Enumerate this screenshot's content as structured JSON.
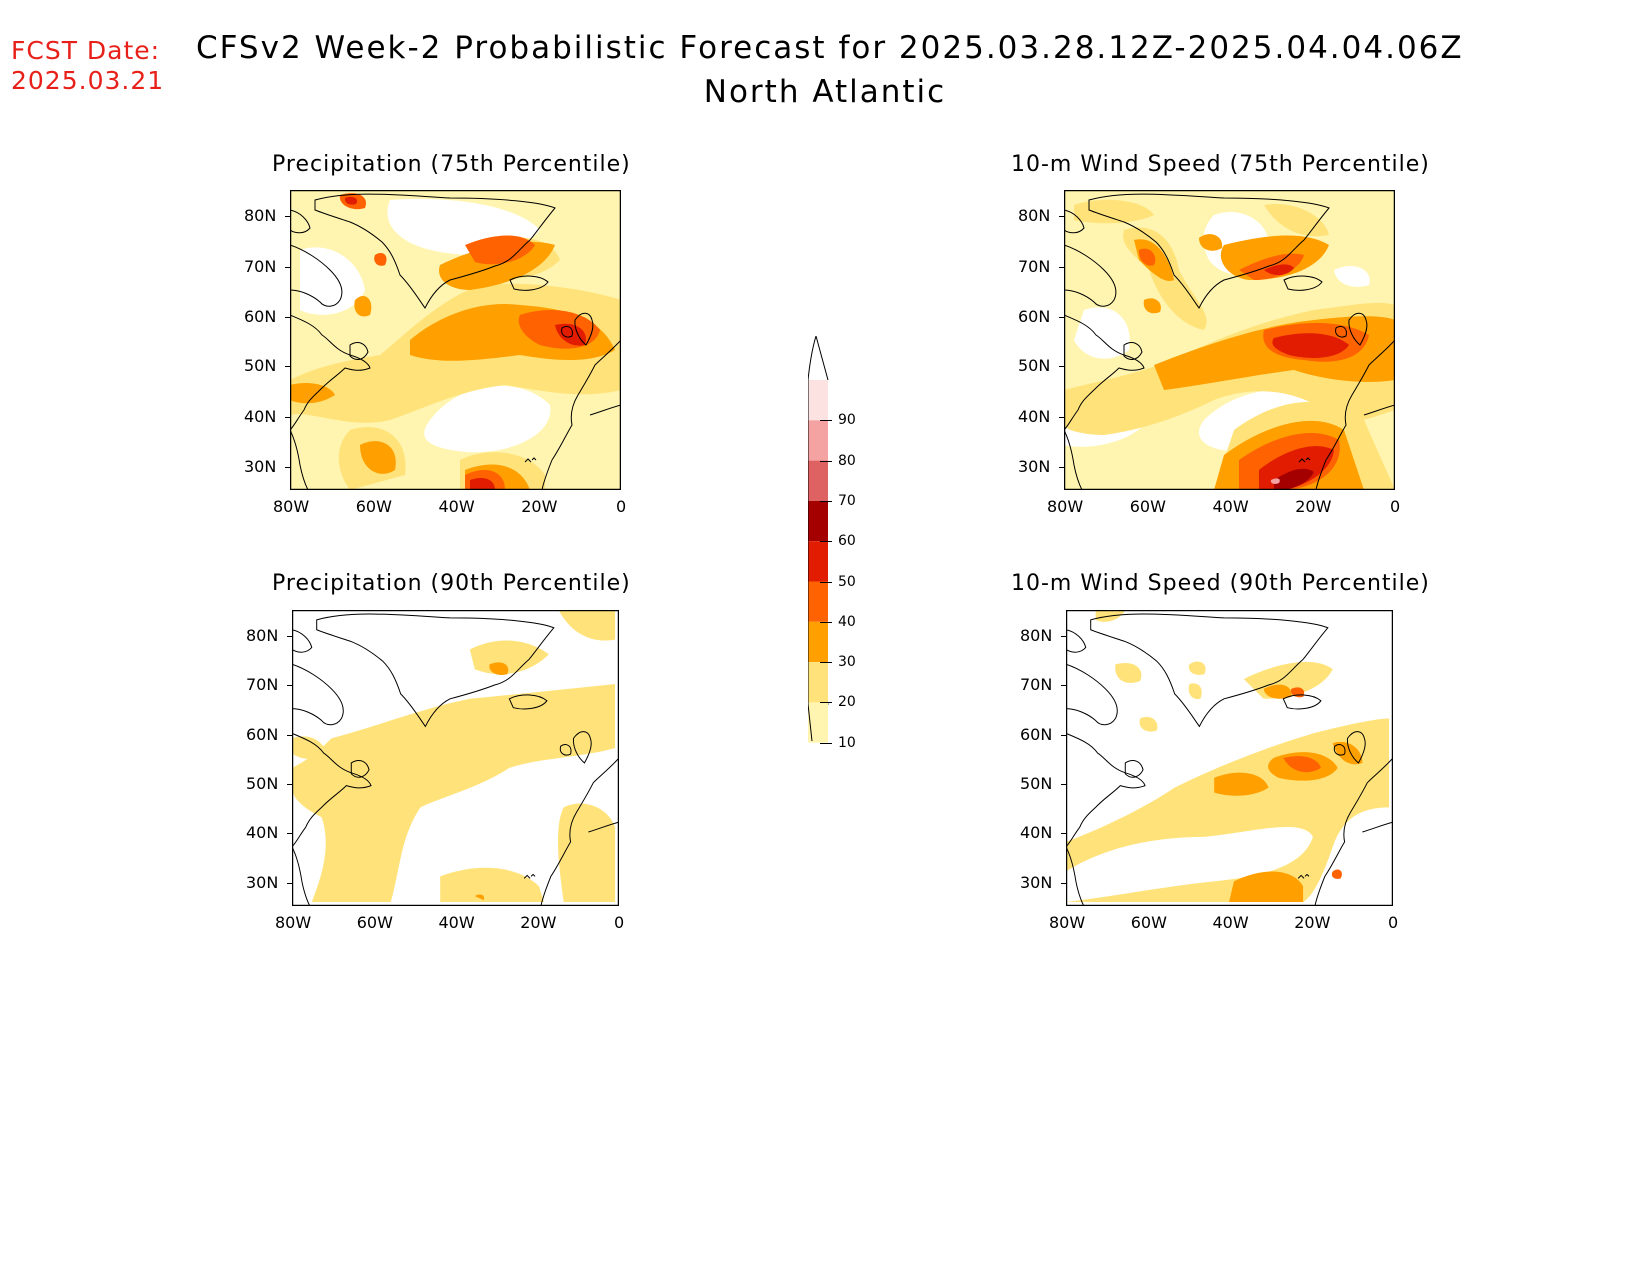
{
  "header": {
    "fcst_label": "FCST Date:",
    "fcst_date": "2025.03.21",
    "title": "CFSv2 Week-2 Probabilistic Forecast for 2025.03.28.12Z-2025.04.04.06Z",
    "subtitle": "North Atlantic"
  },
  "panels": [
    {
      "title": "Precipitation (75th Percentile)"
    },
    {
      "title": "10-m Wind Speed (75th Percentile)"
    },
    {
      "title": "Precipitation (90th Percentile)"
    },
    {
      "title": "10-m Wind Speed (90th Percentile)"
    }
  ],
  "axes": {
    "lat_labels": [
      "80N",
      "70N",
      "60N",
      "50N",
      "40N",
      "30N"
    ],
    "lon_labels": [
      "80W",
      "60W",
      "40W",
      "20W",
      "0"
    ]
  },
  "colorbar": {
    "levels": [
      "10",
      "20",
      "30",
      "40",
      "50",
      "60",
      "70",
      "80",
      "90"
    ],
    "colors": [
      "#fff5b0",
      "#ffe37a",
      "#ffa000",
      "#ff6200",
      "#e11c00",
      "#a50000",
      "#df6262",
      "#f4a2a2",
      "#fde2e2",
      "#ffffff"
    ]
  }
}
